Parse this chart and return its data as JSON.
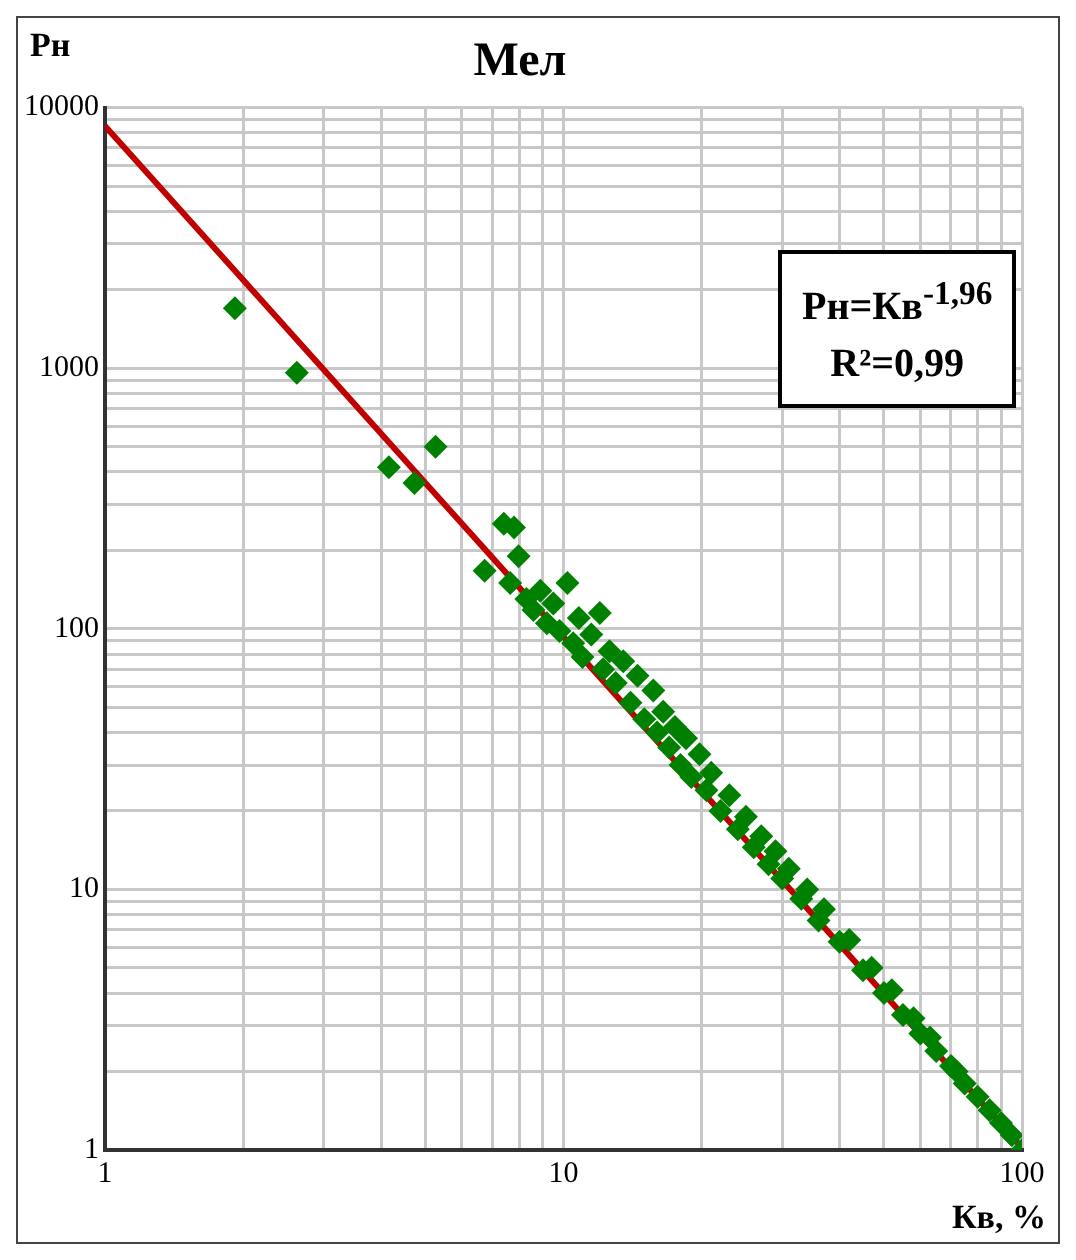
{
  "chart_data": {
    "type": "scatter",
    "title": "Мел",
    "xlabel": "Кв, %",
    "ylabel": "Рн",
    "annotations": [
      "Рн=Кв$^{-1,96}$",
      "R²=0,99"
    ],
    "log": "xy",
    "grid": true,
    "xlim": [
      1,
      100
    ],
    "ylim": [
      1,
      10000
    ],
    "xticks": [
      1,
      {
        "value": 2,
        "label": null
      },
      {
        "value": 3,
        "label": null
      },
      {
        "value": 4,
        "label": null
      },
      {
        "value": 5,
        "label": null
      },
      {
        "value": 6,
        "label": null
      },
      {
        "value": 7,
        "label": null
      },
      {
        "value": 8,
        "label": null
      },
      {
        "value": 9,
        "label": null
      },
      10,
      {
        "value": 20,
        "label": null
      },
      {
        "value": 30,
        "label": null
      },
      {
        "value": 40,
        "label": null
      },
      {
        "value": 50,
        "label": null
      },
      {
        "value": 60,
        "label": null
      },
      {
        "value": 70,
        "label": null
      },
      {
        "value": 80,
        "label": null
      },
      {
        "value": 90,
        "label": null
      },
      100
    ],
    "yticks": [
      1,
      {
        "value": 2,
        "label": null
      },
      {
        "value": 3,
        "label": null
      },
      {
        "value": 4,
        "label": null
      },
      {
        "value": 5,
        "label": null
      },
      {
        "value": 6,
        "label": null
      },
      {
        "value": 7,
        "label": null
      },
      {
        "value": 8,
        "label": null
      },
      {
        "value": 9,
        "label": null
      },
      10,
      {
        "value": 20,
        "label": null
      },
      {
        "value": 30,
        "label": null
      },
      {
        "value": 40,
        "label": null
      },
      {
        "value": 50,
        "label": null
      },
      {
        "value": 60,
        "label": null
      },
      {
        "value": 70,
        "label": null
      },
      {
        "value": 80,
        "label": null
      },
      {
        "value": 90,
        "label": null
      },
      100,
      {
        "value": 200,
        "label": null
      },
      {
        "value": 300,
        "label": null
      },
      {
        "value": 400,
        "label": null
      },
      {
        "value": 500,
        "label": null
      },
      {
        "value": 600,
        "label": null
      },
      {
        "value": 700,
        "label": null
      },
      {
        "value": 800,
        "label": null
      },
      {
        "value": 900,
        "label": null
      },
      1000,
      {
        "value": 2000,
        "label": null
      },
      {
        "value": 3000,
        "label": null
      },
      {
        "value": 4000,
        "label": null
      },
      {
        "value": 5000,
        "label": null
      },
      {
        "value": 6000,
        "label": null
      },
      {
        "value": 7000,
        "label": null
      },
      {
        "value": 8000,
        "label": null
      },
      {
        "value": 9000,
        "label": null
      },
      10000
    ],
    "series": [
      {
        "type": "line",
        "color": "#c00000",
        "marker": "none",
        "line_style": "solid",
        "x": [
          1,
          100
        ],
        "values": [
          8500,
          1.02
        ]
      },
      {
        "color": "#008000",
        "marker": "diamond",
        "x": [
          1.92,
          2.62,
          4.16,
          4.73,
          5.26,
          6.73,
          7.41,
          7.8,
          7.98,
          7.65,
          8.3,
          8.6,
          8.9,
          9.2,
          9.5,
          9.8,
          10.2,
          10.5,
          10.8,
          11,
          11.5,
          12,
          12.2,
          12.6,
          13,
          13.5,
          14,
          14.5,
          15,
          15.7,
          16,
          16.5,
          17,
          17.5,
          18,
          18.5,
          19,
          19.8,
          20.5,
          21,
          22,
          23,
          24,
          25,
          26,
          27,
          28,
          29,
          30,
          31,
          33,
          34,
          36,
          37,
          40,
          42,
          45,
          47,
          50,
          52,
          55,
          58,
          60,
          63,
          65,
          70,
          72,
          75,
          80,
          85,
          90,
          95,
          100
        ],
        "values": [
          1700,
          960,
          417,
          363,
          500,
          167,
          253,
          245,
          190,
          150,
          130,
          118,
          140,
          105,
          125,
          98,
          150,
          88,
          110,
          78,
          95,
          115,
          70,
          82,
          62,
          75,
          52,
          66,
          45,
          58,
          40,
          48,
          35,
          42,
          30,
          38,
          27,
          33,
          24,
          28,
          20,
          23,
          17,
          19,
          14.5,
          16,
          12.5,
          14,
          11,
          12,
          9.2,
          10,
          7.6,
          8.4,
          6.3,
          6.4,
          4.9,
          5.0,
          4.0,
          4.1,
          3.3,
          3.2,
          2.8,
          2.7,
          2.4,
          2.1,
          2.0,
          1.8,
          1.6,
          1.42,
          1.27,
          1.14,
          1
        ]
      }
    ]
  }
}
